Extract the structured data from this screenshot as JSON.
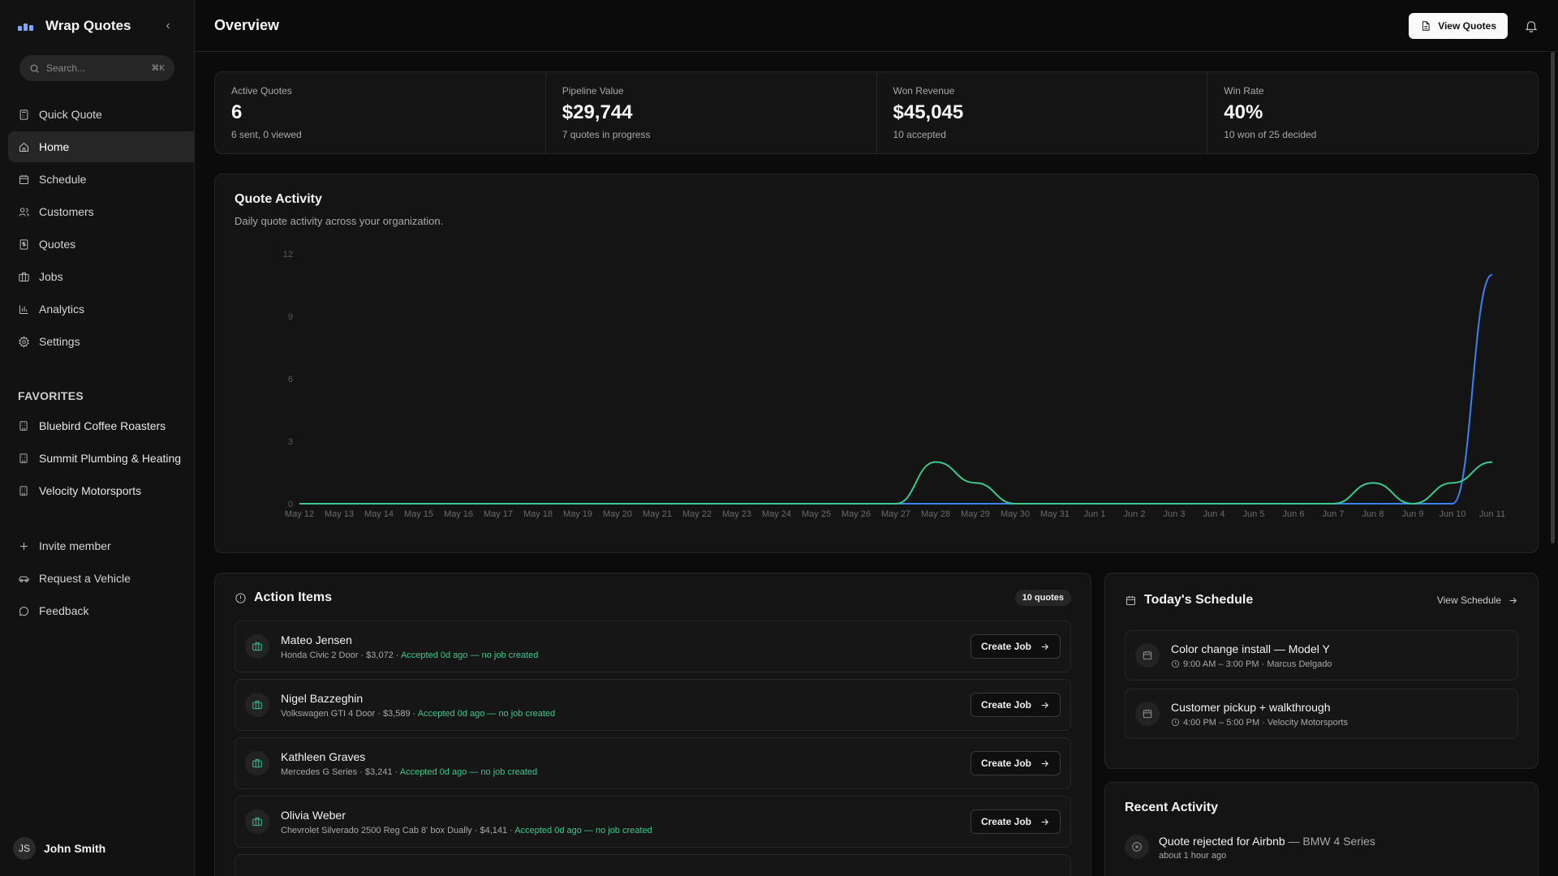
{
  "app": {
    "title": "Wrap Quotes"
  },
  "search": {
    "placeholder": "Search...",
    "shortcut": "⌘K"
  },
  "nav": {
    "items": [
      {
        "label": "Quick Quote",
        "icon": "calculator-icon"
      },
      {
        "label": "Home",
        "icon": "home-icon",
        "active": true
      },
      {
        "label": "Schedule",
        "icon": "calendar-clock-icon"
      },
      {
        "label": "Customers",
        "icon": "users-icon"
      },
      {
        "label": "Quotes",
        "icon": "dollar-doc-icon"
      },
      {
        "label": "Jobs",
        "icon": "briefcase-icon"
      },
      {
        "label": "Analytics",
        "icon": "bar-chart-icon"
      },
      {
        "label": "Settings",
        "icon": "gear-icon"
      }
    ]
  },
  "favorites": {
    "title": "FAVORITES",
    "items": [
      {
        "label": "Bluebird Coffee Roasters"
      },
      {
        "label": "Summit Plumbing & Heating"
      },
      {
        "label": "Velocity Motorsports"
      }
    ]
  },
  "extra": {
    "invite": "Invite member",
    "request_vehicle": "Request a Vehicle",
    "feedback": "Feedback"
  },
  "user": {
    "initials": "JS",
    "name": "John Smith"
  },
  "header": {
    "title": "Overview",
    "view_quotes": "View Quotes"
  },
  "stats": [
    {
      "label": "Active Quotes",
      "value": "6",
      "sub": "6 sent, 0 viewed"
    },
    {
      "label": "Pipeline Value",
      "value": "$29,744",
      "sub": "7 quotes in progress"
    },
    {
      "label": "Won Revenue",
      "value": "$45,045",
      "sub": "10 accepted"
    },
    {
      "label": "Win Rate",
      "value": "40%",
      "sub": "10 won of 25 decided"
    }
  ],
  "activity": {
    "title": "Quote Activity",
    "subtitle": "Daily quote activity across your organization."
  },
  "chart_data": {
    "type": "line",
    "x": [
      "May 12",
      "May 13",
      "May 14",
      "May 15",
      "May 16",
      "May 17",
      "May 18",
      "May 19",
      "May 20",
      "May 21",
      "May 22",
      "May 23",
      "May 24",
      "May 25",
      "May 26",
      "May 27",
      "May 28",
      "May 29",
      "May 30",
      "May 31",
      "Jun 1",
      "Jun 2",
      "Jun 3",
      "Jun 4",
      "Jun 5",
      "Jun 6",
      "Jun 7",
      "Jun 8",
      "Jun 9",
      "Jun 10",
      "Jun 11"
    ],
    "yticks": [
      0,
      3,
      6,
      9,
      12
    ],
    "ylim": [
      0,
      12
    ],
    "series": [
      {
        "color": "#3cc98e",
        "values": [
          0,
          0,
          0,
          0,
          0,
          0,
          0,
          0,
          0,
          0,
          0,
          0,
          0,
          0,
          0,
          0,
          2,
          1,
          0,
          0,
          0,
          0,
          0,
          0,
          0,
          0,
          0,
          1,
          0,
          1,
          2
        ]
      },
      {
        "color": "#3b82f6",
        "values": [
          0,
          0,
          0,
          0,
          0,
          0,
          0,
          0,
          0,
          0,
          0,
          0,
          0,
          0,
          0,
          0,
          0,
          0,
          0,
          0,
          0,
          0,
          0,
          0,
          0,
          0,
          0,
          0,
          0,
          0,
          11
        ]
      }
    ],
    "grid": false
  },
  "action_items": {
    "title": "Action Items",
    "badge": "10 quotes",
    "button_label": "Create Job",
    "rows": [
      {
        "name": "Mateo Jensen",
        "meta": "Honda Civic 2 Door · $3,072 · ",
        "status": "Accepted 0d ago — no job created"
      },
      {
        "name": "Nigel Bazzeghin",
        "meta": "Volkswagen GTI 4 Door · $3,589 · ",
        "status": "Accepted 0d ago — no job created"
      },
      {
        "name": "Kathleen Graves",
        "meta": "Mercedes G Series · $3,241 · ",
        "status": "Accepted 0d ago — no job created"
      },
      {
        "name": "Olivia Weber",
        "meta": "Chevrolet Silverado 2500 Reg Cab 8' box Dually · $4,141 · ",
        "status": "Accepted 0d ago — no job created"
      }
    ]
  },
  "schedule": {
    "title": "Today's Schedule",
    "view_label": "View Schedule",
    "rows": [
      {
        "title": "Color change install — Model Y",
        "meta": "9:00 AM – 3:00 PM · Marcus Delgado"
      },
      {
        "title": "Customer pickup + walkthrough",
        "meta": "4:00 PM – 5:00 PM · Velocity Motorsports"
      }
    ]
  },
  "recent": {
    "title": "Recent Activity",
    "rows": [
      {
        "title": "Quote rejected for Airbnb",
        "detail": " — BMW 4 Series",
        "time": "about 1 hour ago"
      }
    ]
  }
}
